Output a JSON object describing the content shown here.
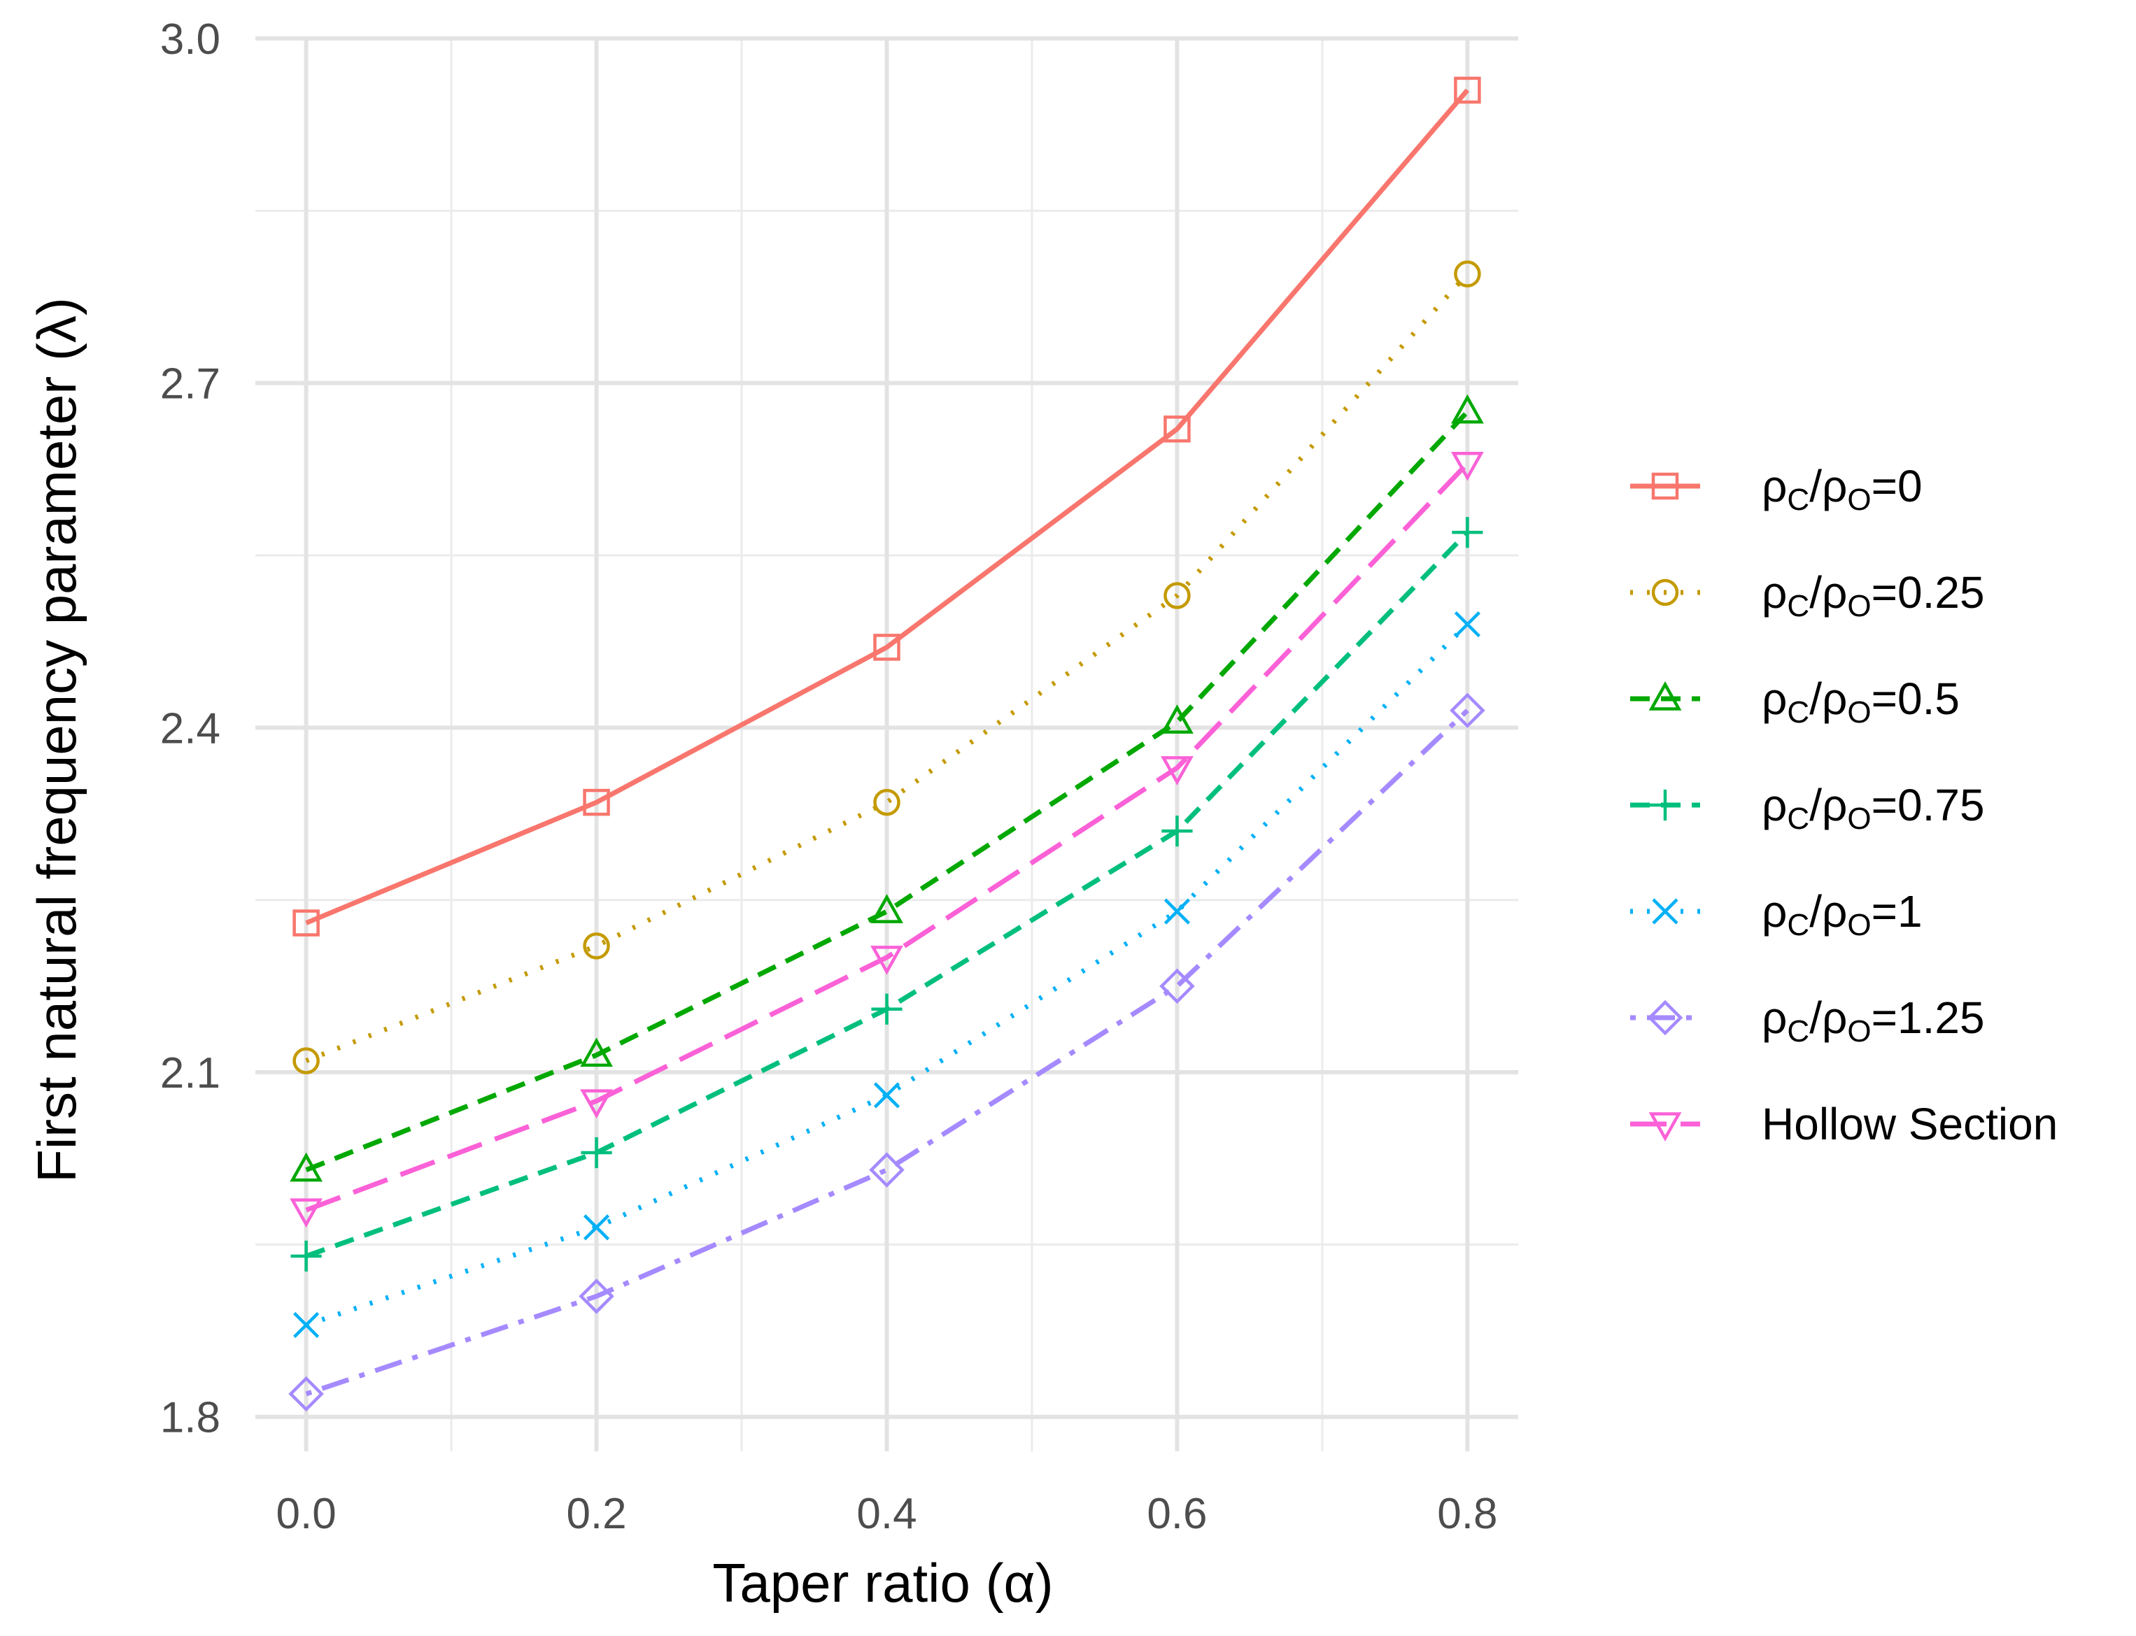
{
  "chart_data": {
    "type": "line",
    "title": "",
    "xlabel": "Taper ratio (α)",
    "ylabel": "First natural frequency parameter (λ)",
    "x": [
      0.0,
      0.2,
      0.4,
      0.6,
      0.8
    ],
    "x_ticks": [
      "0.0",
      "0.2",
      "0.4",
      "0.6",
      "0.8"
    ],
    "y_ticks": [
      "1.8",
      "2.1",
      "2.4",
      "2.7",
      "3.0"
    ],
    "xlim": [
      -0.035,
      0.835
    ],
    "ylim": [
      1.77,
      3.0
    ],
    "grid": true,
    "legend_position": "right",
    "series": [
      {
        "name": "ρC/ρO=0",
        "label_parts": {
          "rho": "ρ",
          "sub1": "C",
          "sep": "/",
          "rho2": "ρ",
          "sub2": "O",
          "tail": "=0"
        },
        "color": "#F8766D",
        "marker": "square",
        "dash": "solid",
        "values": [
          2.23,
          2.335,
          2.47,
          2.66,
          2.955
        ]
      },
      {
        "name": "ρC/ρO=0.25",
        "label_parts": {
          "rho": "ρ",
          "sub1": "C",
          "sep": "/",
          "rho2": "ρ",
          "sub2": "O",
          "tail": "=0.25"
        },
        "color": "#C49A00",
        "marker": "circle",
        "dash": "dotted",
        "values": [
          2.11,
          2.21,
          2.335,
          2.515,
          2.795
        ]
      },
      {
        "name": "ρC/ρO=0.5",
        "label_parts": {
          "rho": "ρ",
          "sub1": "C",
          "sep": "/",
          "rho2": "ρ",
          "sub2": "O",
          "tail": "=0.5"
        },
        "color": "#00A800",
        "marker": "triangle-up",
        "dash": "dashed",
        "values": [
          2.015,
          2.115,
          2.24,
          2.405,
          2.675
        ]
      },
      {
        "name": "ρC/ρO=0.75",
        "label_parts": {
          "rho": "ρ",
          "sub1": "C",
          "sep": "/",
          "rho2": "ρ",
          "sub2": "O",
          "tail": "=0.75"
        },
        "color": "#00BF7D",
        "marker": "plus",
        "dash": "dashed",
        "values": [
          1.94,
          2.03,
          2.155,
          2.31,
          2.57
        ]
      },
      {
        "name": "ρC/ρO=1",
        "label_parts": {
          "rho": "ρ",
          "sub1": "C",
          "sep": "/",
          "rho2": "ρ",
          "sub2": "O",
          "tail": "=1"
        },
        "color": "#00B0F6",
        "marker": "x",
        "dash": "dotted",
        "values": [
          1.88,
          1.965,
          2.08,
          2.24,
          2.49
        ]
      },
      {
        "name": "ρC/ρO=1.25",
        "label_parts": {
          "rho": "ρ",
          "sub1": "C",
          "sep": "/",
          "rho2": "ρ",
          "sub2": "O",
          "tail": "=1.25"
        },
        "color": "#A58AFF",
        "marker": "diamond",
        "dash": "dotdash",
        "values": [
          1.82,
          1.905,
          2.015,
          2.175,
          2.415
        ]
      },
      {
        "name": "Hollow Section",
        "label_parts": null,
        "color": "#FB61D7",
        "marker": "triangle-down",
        "dash": "longdash",
        "values": [
          1.98,
          2.075,
          2.2,
          2.365,
          2.63
        ]
      }
    ]
  }
}
